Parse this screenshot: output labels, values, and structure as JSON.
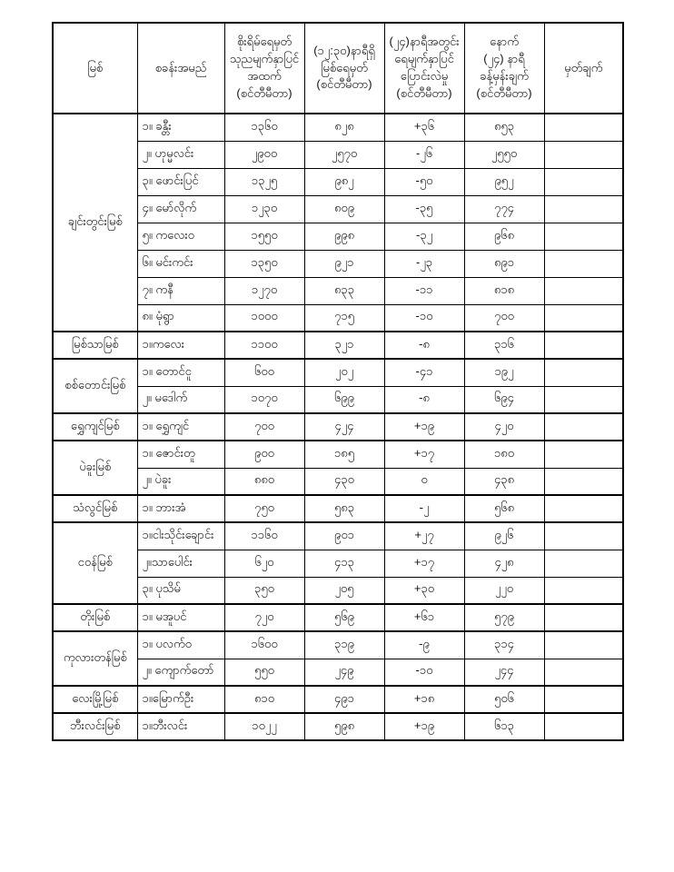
{
  "page": {
    "background_color": "#ffffff",
    "border_color": "#000000",
    "text_color": "#111111"
  },
  "table": {
    "headers": [
      "မြစ်",
      "စခန်းအမည်",
      "စိုးရိမ်ရေမှတ်\nသုညမျက်နှာပြင်\nအထက်\n(စင်တီမီတာ)",
      "(၁၂:၃၀)နာရီရှိ\nမြစ်ရေမှတ်\n(စင်တီမီတာ)",
      "(၂၄)နာရီအတွင်း\nရေမျက်နှာပြင်\nပြောင်းလဲမှု\n(စင်တီမီတာ)",
      "နောက်\n(၂၄) နာရီ\nခန့်မှန်းချက်\n(စင်တီမီတာ)",
      "မှတ်ချက်"
    ],
    "groups": [
      {
        "river": "ချင်းတွင်းမြစ်",
        "rows": [
          {
            "station": "၁။ ခန္တီး",
            "danger": "၁၃၆၀",
            "current": "၈၂၈",
            "change": "+၃၆",
            "forecast": "၈၅၃",
            "remark": ""
          },
          {
            "station": "၂။ ဟုမ္မလင်း",
            "danger": "၂၉၀၀",
            "current": "၂၅၇၀",
            "change": "-၂၆",
            "forecast": "၂၅၅၀",
            "remark": ""
          },
          {
            "station": "၃။ ဖောင်းပြင်",
            "danger": "၁၃၂၅",
            "current": "၉၈၂",
            "change": "-၅၀",
            "forecast": "၉၅၂",
            "remark": ""
          },
          {
            "station": "၄။ မော်လိုက်",
            "danger": "၁၂၃၀",
            "current": "၈၀၉",
            "change": "-၃၅",
            "forecast": "၇၇၄",
            "remark": ""
          },
          {
            "station": "၅။ ကလေးဝ",
            "danger": "၁၅၅၀",
            "current": "၉၉၈",
            "change": "-၃၂",
            "forecast": "၉၆၈",
            "remark": ""
          },
          {
            "station": "၆။ မင်းကင်း",
            "danger": "၁၃၅၀",
            "current": "၉၂၁",
            "change": "-၂၃",
            "forecast": "၈၉၁",
            "remark": ""
          },
          {
            "station": "၇။ ကနီ",
            "danger": "၁၂၇၀",
            "current": "၈၃၃",
            "change": "-၁၁",
            "forecast": "၈၁၈",
            "remark": ""
          },
          {
            "station": "၈။ မုံရွာ",
            "danger": "၁၀၀၀",
            "current": "၇၁၅",
            "change": "-၁၀",
            "forecast": "၇၀၀",
            "remark": ""
          }
        ]
      },
      {
        "river": "မြစ်သာမြစ်",
        "rows": [
          {
            "station": "၁။ကလေး",
            "danger": "၁၁၀၀",
            "current": "၃၂၁",
            "change": "-၈",
            "forecast": "၃၁၆",
            "remark": ""
          }
        ]
      },
      {
        "river": "စစ်တောင်းမြစ်",
        "rows": [
          {
            "station": "၁။ တောင်ငူ",
            "danger": "၆၀၀",
            "current": "၂၀၂",
            "change": "-၄၁",
            "forecast": "၁၉၂",
            "remark": ""
          },
          {
            "station": "၂။ မဒေါက်",
            "danger": "၁၀၇၀",
            "current": "၆၉၉",
            "change": "-၈",
            "forecast": "၆၉၄",
            "remark": ""
          }
        ]
      },
      {
        "river": "ရွှေကျင်မြစ်",
        "rows": [
          {
            "station": "၁။ ရွှေကျင်",
            "danger": "၇၀၀",
            "current": "၄၂၄",
            "change": "+၁၉",
            "forecast": "၄၂၀",
            "remark": ""
          }
        ]
      },
      {
        "river": "ပဲခူးမြစ်",
        "rows": [
          {
            "station": "၁။ ဇောင်းတူ",
            "danger": "၉၀၀",
            "current": "၁၈၅",
            "change": "+၁၇",
            "forecast": "၁၈၀",
            "remark": ""
          },
          {
            "station": "၂။ ပဲခူး",
            "danger": "၈၈၀",
            "current": "၄၃၀",
            "change": "၀",
            "forecast": "၄၃၈",
            "remark": ""
          }
        ]
      },
      {
        "river": "သံလွင်မြစ်",
        "rows": [
          {
            "station": "၁။ ဘားအံ",
            "danger": "၇၅၀",
            "current": "၅၈၃",
            "change": "-၂",
            "forecast": "၅၆၈",
            "remark": ""
          }
        ]
      },
      {
        "river": "ငဝန်မြစ်",
        "rows": [
          {
            "station": "၁။ငါးသိုင်းချောင်း",
            "danger": "၁၁၆၀",
            "current": "၉၀၁",
            "change": "+၂၇",
            "forecast": "၉၂၆",
            "remark": ""
          },
          {
            "station": "၂။သာပေါင်း",
            "danger": "၆၂၀",
            "current": "၄၁၃",
            "change": "+၁၇",
            "forecast": "၄၂၈",
            "remark": ""
          },
          {
            "station": "၃။ ပုသိမ်",
            "danger": "၃၅၀",
            "current": "၂၀၅",
            "change": "+၃၀",
            "forecast": "၂၂၀",
            "remark": ""
          }
        ]
      },
      {
        "river": "တိုးမြစ်",
        "rows": [
          {
            "station": "၁။ မအူပင်",
            "danger": "၇၂၀",
            "current": "၅၆၉",
            "change": "+၆၁",
            "forecast": "၅၇၉",
            "remark": ""
          }
        ]
      },
      {
        "river": "ကုလားတန်မြစ်",
        "rows": [
          {
            "station": "၁။ ပလက်ဝ",
            "danger": "၁၆၀၀",
            "current": "၃၁၉",
            "change": "-၉",
            "forecast": "၃၁၄",
            "remark": ""
          },
          {
            "station": "၂။ ကျောက်တော်",
            "danger": "၅၅၀",
            "current": "၂၄၉",
            "change": "-၁၀",
            "forecast": "၂၄၄",
            "remark": ""
          }
        ]
      },
      {
        "river": "လေးမြို့မြစ်",
        "rows": [
          {
            "station": "၁။မြောက်ဦး",
            "danger": "၈၁၀",
            "current": "၄၉၁",
            "change": "+၁၈",
            "forecast": "၅၀၆",
            "remark": ""
          }
        ]
      },
      {
        "river": "ဘီးလင်းမြစ်",
        "rows": [
          {
            "station": "၁။ဘီးလင်း",
            "danger": "၁၀၂၂",
            "current": "၅၉၈",
            "change": "+၁၉",
            "forecast": "၆၁၃",
            "remark": ""
          }
        ]
      }
    ]
  }
}
